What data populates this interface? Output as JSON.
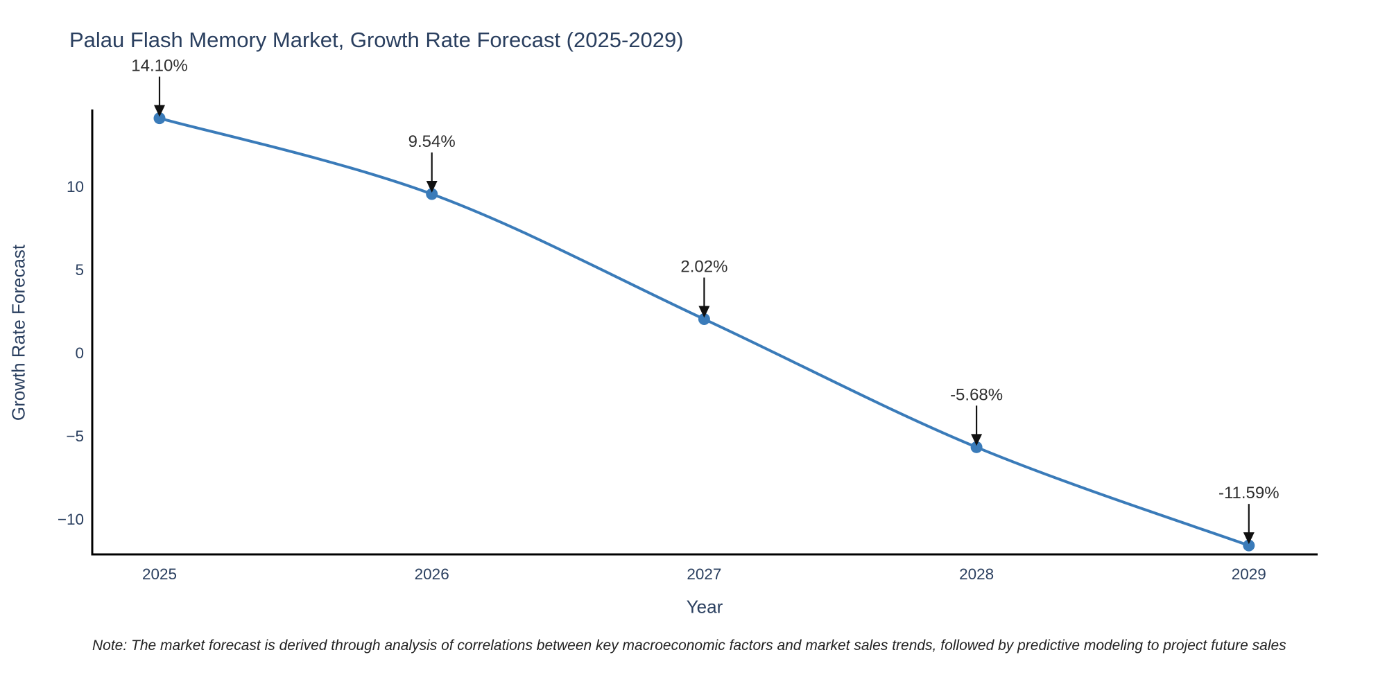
{
  "title": "Palau Flash Memory Market, Growth Rate Forecast (2025-2029)",
  "note": "Note: The market forecast is derived through analysis of correlations between key macroeconomic factors and market sales trends, followed by predictive modeling to project future sales",
  "chart_data": {
    "type": "line",
    "title": "Palau Flash Memory Market, Growth Rate Forecast (2025-2029)",
    "xlabel": "Year",
    "ylabel": "Growth Rate Forecast",
    "categories": [
      "2025",
      "2026",
      "2027",
      "2028",
      "2029"
    ],
    "series": [
      {
        "name": "Growth Rate Forecast",
        "values": [
          14.1,
          9.54,
          2.02,
          -5.68,
          -11.59
        ],
        "point_labels": [
          "14.10%",
          "9.54%",
          "2.02%",
          "-5.68%",
          "-11.59%"
        ]
      }
    ],
    "ytick_values": [
      10,
      5,
      0,
      -5,
      -10
    ],
    "ytick_labels": [
      "10",
      "5",
      "0",
      "−5",
      "−10"
    ],
    "ylim": [
      -12.2,
      14.6
    ],
    "grid": false,
    "legend_position": "none",
    "line_shape": "spline",
    "marker": "circle"
  },
  "colors": {
    "line": "#3a7bb9",
    "marker": "#3a7bb9",
    "axis_line": "#000000",
    "tick_label": "#2a3f5f",
    "title_text": "#2a3f5f",
    "annotation_text": "#2f2f2f",
    "annotation_arrow": "#111111",
    "background": "#ffffff"
  }
}
